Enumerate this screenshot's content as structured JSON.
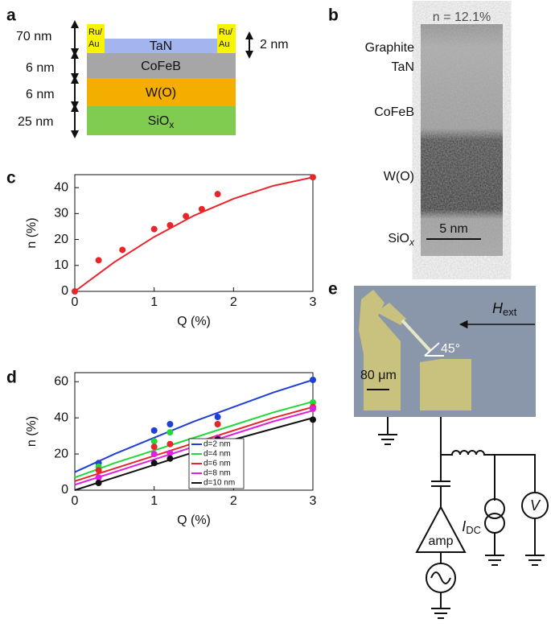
{
  "panel_a": {
    "letter": "a",
    "thickness_labels": [
      "70 nm",
      "6 nm",
      "6 nm",
      "25 nm"
    ],
    "layers": [
      {
        "label": "TaN"
      },
      {
        "label": "CoFeB"
      },
      {
        "label": "W(O)"
      },
      {
        "label": "SiO",
        "sub": "x"
      }
    ],
    "contact": [
      "Ru/",
      "Au"
    ],
    "cap_thickness": "2 nm"
  },
  "panel_b": {
    "letter": "b",
    "title": "n = 12.1%",
    "labels": [
      "Graphite",
      "TaN",
      "CoFeB",
      "W(O)"
    ],
    "substrate": {
      "label": "SiO",
      "sub": "x"
    },
    "scale": "5 nm"
  },
  "chart_data": [
    {
      "type": "scatter",
      "label": "c",
      "xlabel": "Q (%)",
      "ylabel": "n (%)",
      "xlim": [
        0,
        3
      ],
      "ylim": [
        0,
        45
      ],
      "xticks": [
        0,
        1,
        2,
        3
      ],
      "yticks": [
        0,
        10,
        20,
        30,
        40
      ],
      "fit_x": [
        0,
        0.5,
        1,
        1.5,
        2,
        2.5,
        3
      ],
      "series": [
        {
          "color": "#e8262a",
          "x": [
            0,
            0.3,
            0.6,
            1.0,
            1.2,
            1.4,
            1.6,
            1.8,
            3.0
          ],
          "values": [
            0,
            12,
            16,
            24,
            25.5,
            29,
            31.7,
            37.5,
            44
          ],
          "fit_values": [
            0,
            11.3,
            21,
            29.2,
            35.7,
            40.7,
            44
          ]
        }
      ]
    },
    {
      "type": "scatter",
      "label": "d",
      "xlabel": "Q (%)",
      "ylabel": "n (%)",
      "xlim": [
        0,
        3
      ],
      "ylim": [
        0,
        65
      ],
      "xticks": [
        0,
        1,
        2,
        3
      ],
      "yticks": [
        0,
        20,
        40,
        60
      ],
      "legend": "lower right",
      "fit_x": [
        0,
        0.5,
        1,
        1.5,
        2,
        2.5,
        3
      ],
      "series": [
        {
          "name": "d=2 nm",
          "color": "#1f3fd8",
          "x": [
            0.3,
            1.0,
            1.2,
            1.8,
            3.0
          ],
          "values": [
            15,
            33,
            36.5,
            40.5,
            61
          ],
          "fit_values": [
            10,
            20,
            29,
            38,
            46,
            54,
            61
          ]
        },
        {
          "name": "d=4 nm",
          "color": "#22d83a",
          "x": [
            0.3,
            1.0,
            1.2,
            1.8,
            3.0
          ],
          "values": [
            13,
            27,
            32,
            36.5,
            48.5
          ],
          "fit_values": [
            7,
            15,
            22,
            29,
            36,
            43,
            49
          ]
        },
        {
          "name": "d=6 nm",
          "color": "#e8262a",
          "x": [
            0.3,
            1.0,
            1.2,
            1.8,
            3.0
          ],
          "values": [
            11,
            24,
            25.5,
            36.5,
            46
          ],
          "fit_values": [
            5,
            12,
            19,
            26,
            33,
            40,
            46
          ]
        },
        {
          "name": "d=8 nm",
          "color": "#e020e0",
          "x": [
            0.3,
            1.0,
            1.2,
            1.8,
            3.0
          ],
          "values": [
            7,
            20,
            20.5,
            29,
            45
          ],
          "fit_values": [
            3,
            10,
            17,
            24,
            31,
            38,
            44
          ]
        },
        {
          "name": "d=10 nm",
          "color": "#111111",
          "x": [
            0.3,
            1.0,
            1.2,
            1.8,
            3.0
          ],
          "values": [
            4,
            15,
            17.5,
            28,
            39
          ],
          "fit_values": [
            0,
            7,
            14,
            21,
            28,
            34,
            40
          ]
        }
      ]
    }
  ],
  "panel_e": {
    "letter": "e",
    "field": {
      "text": "H",
      "sub": "ext"
    },
    "angle": "45°",
    "scale": "80 μm",
    "current": {
      "text": "I",
      "sub": "DC"
    },
    "voltmeter": "V",
    "amplifier": "amp"
  }
}
